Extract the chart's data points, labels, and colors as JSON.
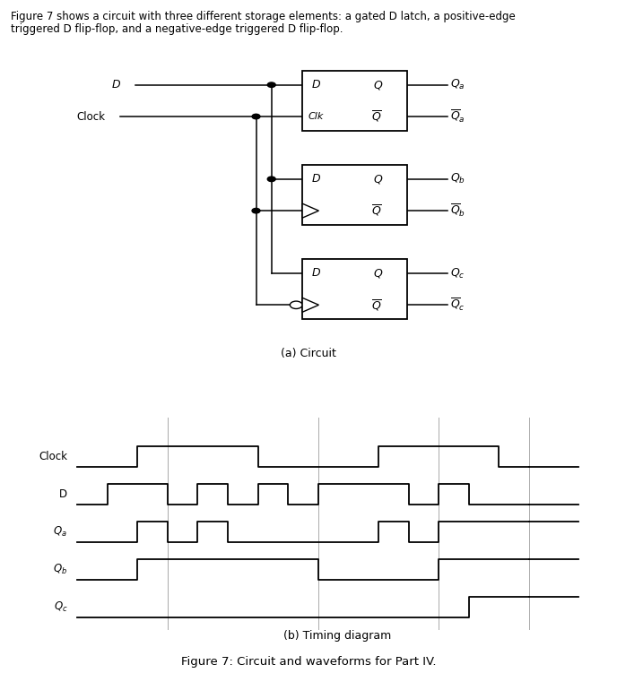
{
  "title_text": "Figure 7: Circuit and waveforms for Part IV.",
  "header_line1": "Figure 7 shows a circuit with three different storage elements: a gated D latch, a positive-edge",
  "header_line2": "triggered D flip-flop, and a negative-edge triggered D flip-flop.",
  "circuit_caption": "(a) Circuit",
  "timing_caption": "(b) Timing diagram",
  "background_color": "#ffffff",
  "line_color": "#000000",
  "timing": {
    "Clock": [
      0,
      0,
      1,
      1,
      1,
      1,
      0,
      0,
      0,
      0,
      1,
      1,
      1,
      1,
      0,
      0
    ],
    "D": [
      0,
      1,
      1,
      0,
      1,
      0,
      1,
      0,
      1,
      1,
      1,
      0,
      1,
      0,
      0,
      0
    ],
    "Q_a": [
      0,
      0,
      1,
      0,
      1,
      0,
      0,
      0,
      0,
      0,
      1,
      0,
      1,
      1,
      1,
      1
    ],
    "Q_b": [
      0,
      0,
      1,
      1,
      1,
      1,
      1,
      1,
      0,
      0,
      0,
      0,
      1,
      1,
      1,
      1
    ],
    "Q_c": [
      0,
      0,
      0,
      0,
      0,
      0,
      0,
      0,
      0,
      0,
      0,
      0,
      0,
      1,
      1,
      1
    ],
    "vline_times": [
      3,
      8,
      12,
      15
    ]
  }
}
